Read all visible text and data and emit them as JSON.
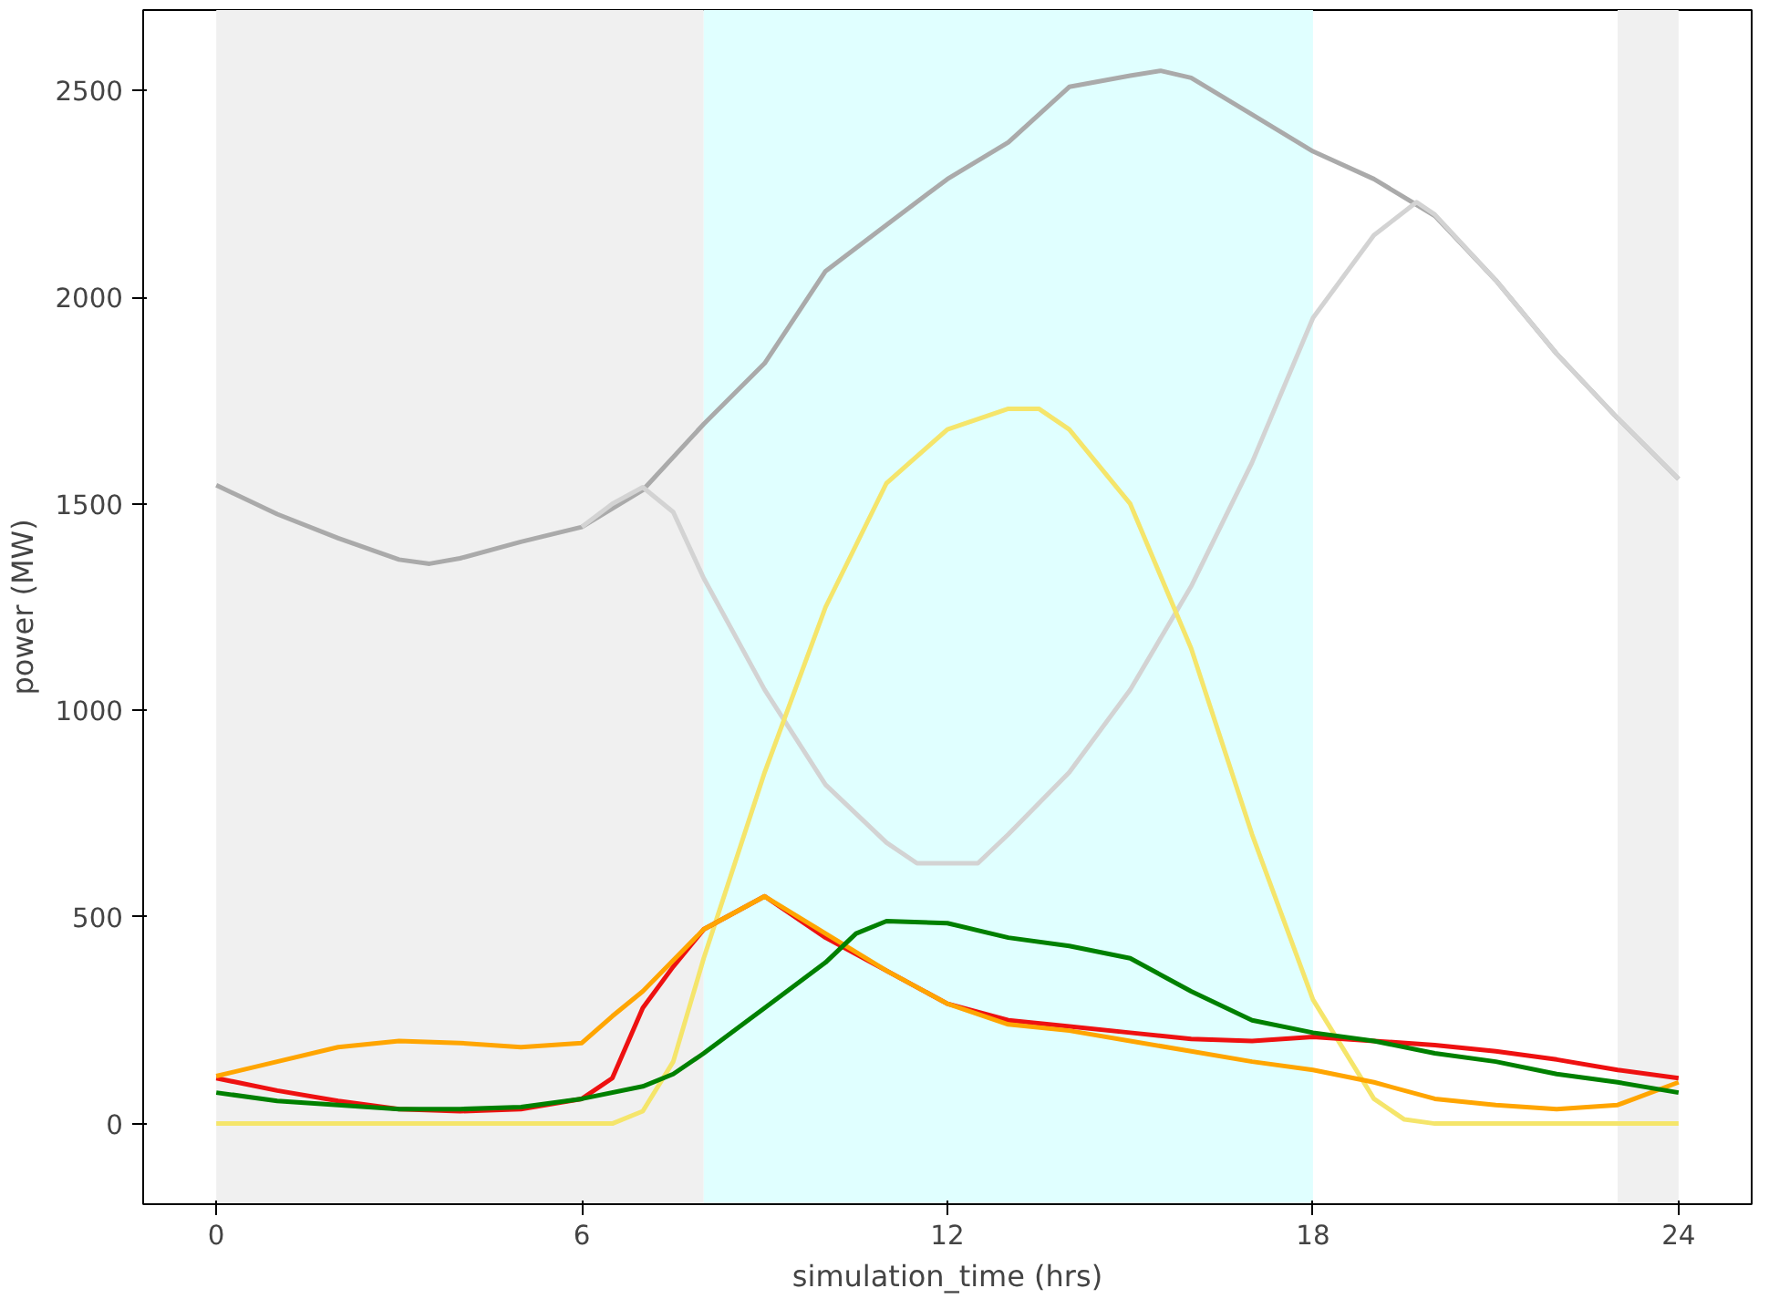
{
  "chart_data": {
    "type": "line",
    "xlabel": "simulation_time (hrs)",
    "ylabel": "power (MW)",
    "xlim": [
      -1.2,
      25.2
    ],
    "ylim": [
      -195,
      2695
    ],
    "xticks": [
      0,
      6,
      12,
      18,
      24
    ],
    "yticks": [
      0,
      500,
      1000,
      1500,
      2000,
      2500
    ],
    "grid": false,
    "line_style": "solid",
    "bands": [
      {
        "axis": "x",
        "from": 0,
        "to": 8,
        "color": "#f0f0f0"
      },
      {
        "axis": "x",
        "from": 8,
        "to": 18,
        "color": "#e0ffff"
      },
      {
        "axis": "x",
        "from": 23,
        "to": 24,
        "color": "#f0f0f0"
      }
    ],
    "series": [
      {
        "color": "#aaaaaa",
        "x": [
          0,
          1,
          2,
          3,
          3.5,
          4,
          5,
          6,
          7,
          8,
          9,
          10,
          11,
          12,
          13,
          14,
          15,
          15.5,
          16,
          17,
          18,
          19,
          20,
          21,
          22,
          23,
          24
        ],
        "values": [
          1545,
          1475,
          1417,
          1365,
          1355,
          1368,
          1408,
          1444,
          1533,
          1693,
          1840,
          2063,
          2175,
          2286,
          2375,
          2509,
          2536,
          2548,
          2531,
          2442,
          2353,
          2286,
          2197,
          2041,
          1863,
          1707,
          1560
        ]
      },
      {
        "color": "#d3d3d3",
        "x": [
          6,
          6.5,
          7,
          7.5,
          8,
          9,
          10,
          11,
          11.5,
          12,
          12.5,
          13,
          14,
          15,
          16,
          17,
          18,
          19,
          19.7,
          20,
          21,
          22,
          23,
          24
        ],
        "values": [
          1444,
          1500,
          1540,
          1480,
          1320,
          1050,
          820,
          680,
          630,
          630,
          630,
          700,
          850,
          1050,
          1300,
          1600,
          1950,
          2150,
          2230,
          2200,
          2041,
          1863,
          1707,
          1560
        ]
      },
      {
        "color": "#f5e56b",
        "x": [
          0,
          6.5,
          7,
          7.5,
          8,
          9,
          10,
          11,
          12,
          13,
          13.5,
          14,
          15,
          16,
          17,
          18,
          19,
          19.5,
          20,
          24
        ],
        "values": [
          0,
          0,
          30,
          150,
          400,
          850,
          1250,
          1550,
          1680,
          1730,
          1730,
          1680,
          1500,
          1150,
          700,
          300,
          60,
          10,
          0,
          0
        ]
      },
      {
        "color": "#ee1111",
        "x": [
          0,
          1,
          2,
          3,
          4,
          5,
          6,
          6.5,
          7,
          7.5,
          8,
          9,
          10,
          11,
          12,
          13,
          14,
          15,
          16,
          17,
          18,
          19,
          20,
          21,
          22,
          23,
          24
        ],
        "values": [
          110,
          80,
          55,
          35,
          30,
          35,
          60,
          110,
          280,
          380,
          470,
          550,
          450,
          370,
          290,
          250,
          235,
          220,
          205,
          200,
          210,
          200,
          190,
          175,
          155,
          130,
          110
        ]
      },
      {
        "color": "#ffa500",
        "x": [
          0,
          1,
          2,
          3,
          4,
          5,
          6,
          6.5,
          7,
          8,
          9,
          10,
          11,
          12,
          13,
          14,
          15,
          16,
          17,
          18,
          19,
          20,
          21,
          22,
          23,
          24
        ],
        "values": [
          115,
          150,
          185,
          200,
          195,
          185,
          195,
          260,
          320,
          470,
          550,
          460,
          370,
          290,
          240,
          225,
          200,
          175,
          150,
          130,
          100,
          60,
          45,
          35,
          45,
          100
        ]
      },
      {
        "color": "#008000",
        "x": [
          0,
          1,
          2,
          3,
          4,
          5,
          6,
          7,
          7.5,
          8,
          9,
          10,
          10.5,
          11,
          12,
          13,
          14,
          15,
          16,
          17,
          18,
          19,
          20,
          21,
          22,
          23,
          24
        ],
        "values": [
          75,
          55,
          45,
          35,
          35,
          40,
          60,
          90,
          120,
          170,
          280,
          390,
          460,
          490,
          485,
          450,
          430,
          400,
          320,
          250,
          220,
          200,
          170,
          150,
          120,
          100,
          75
        ]
      }
    ]
  }
}
